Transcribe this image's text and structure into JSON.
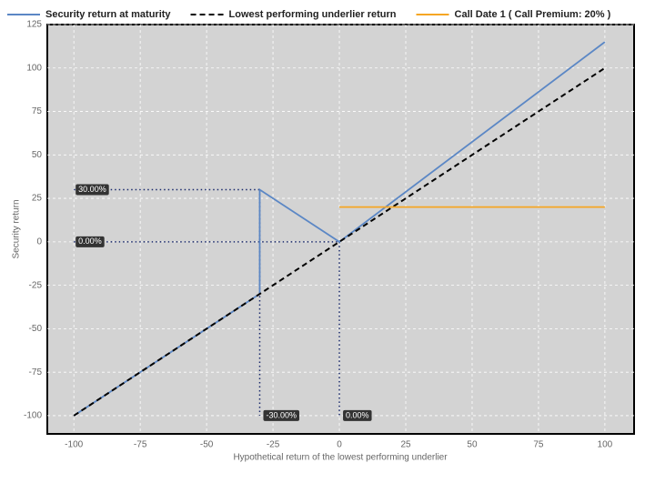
{
  "chart_data": {
    "type": "line",
    "x_label": "Hypothetical return of the lowest performing underlier",
    "y_label": "Security return",
    "xlim": [
      -110,
      111
    ],
    "ylim": [
      -110.5,
      125
    ],
    "xticks": [
      -100,
      -75,
      -50,
      -25,
      0,
      25,
      50,
      75,
      100
    ],
    "yticks": [
      -100,
      -75,
      -50,
      -25,
      0,
      25,
      50,
      75,
      100,
      125
    ],
    "grid": true,
    "series": [
      {
        "name": "Security return at maturity",
        "color": "#5b87c5",
        "dash": false,
        "x": [
          -100,
          -30,
          -30,
          0,
          100
        ],
        "values": [
          -100,
          -30,
          30,
          0,
          115
        ]
      },
      {
        "name": "Lowest performing underlier return",
        "color": "#000000",
        "dash": true,
        "x": [
          -100,
          100
        ],
        "values": [
          -100,
          100
        ]
      },
      {
        "name": "Call Date 1 ( Call Premium: 20% )",
        "color": "#f5a623",
        "dash": false,
        "x": [
          0,
          100
        ],
        "values": [
          20,
          20
        ]
      }
    ],
    "annotations": [
      {
        "axis": "y",
        "x": -30,
        "y": 30,
        "label": "30.00%"
      },
      {
        "axis": "y",
        "x": 0,
        "y": 0,
        "label": "0.00%"
      },
      {
        "axis": "x",
        "x": -30,
        "y": 30,
        "label": "-30.00%"
      },
      {
        "axis": "x",
        "x": 0,
        "y": 0,
        "label": "0.00%"
      }
    ]
  }
}
